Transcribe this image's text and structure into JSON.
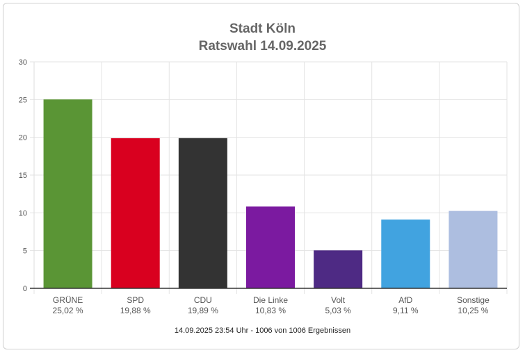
{
  "chart_data": {
    "type": "bar",
    "title": "Stadt Köln",
    "subtitle": "Ratswahl 14.09.2025",
    "categories": [
      "GRÜNE",
      "SPD",
      "CDU",
      "Die Linke",
      "Volt",
      "AfD",
      "Sonstige"
    ],
    "values": [
      25.02,
      19.88,
      19.89,
      10.83,
      5.03,
      9.11,
      10.25
    ],
    "value_labels": [
      "25,02 %",
      "19,88 %",
      "19,89 %",
      "10,83 %",
      "5,03 %",
      "9,11 %",
      "10,25 %"
    ],
    "colors": [
      "#5a9535",
      "#d9001f",
      "#333333",
      "#7b1aa0",
      "#4e2a84",
      "#41a3e0",
      "#adbee0"
    ],
    "ylim": [
      0,
      30
    ],
    "yticks": [
      0,
      5,
      10,
      15,
      20,
      25,
      30
    ],
    "grid": true,
    "xlabel": "",
    "ylabel": ""
  },
  "footer": "14.09.2025 23:54 Uhr - 1006 von 1006 Ergebnissen"
}
